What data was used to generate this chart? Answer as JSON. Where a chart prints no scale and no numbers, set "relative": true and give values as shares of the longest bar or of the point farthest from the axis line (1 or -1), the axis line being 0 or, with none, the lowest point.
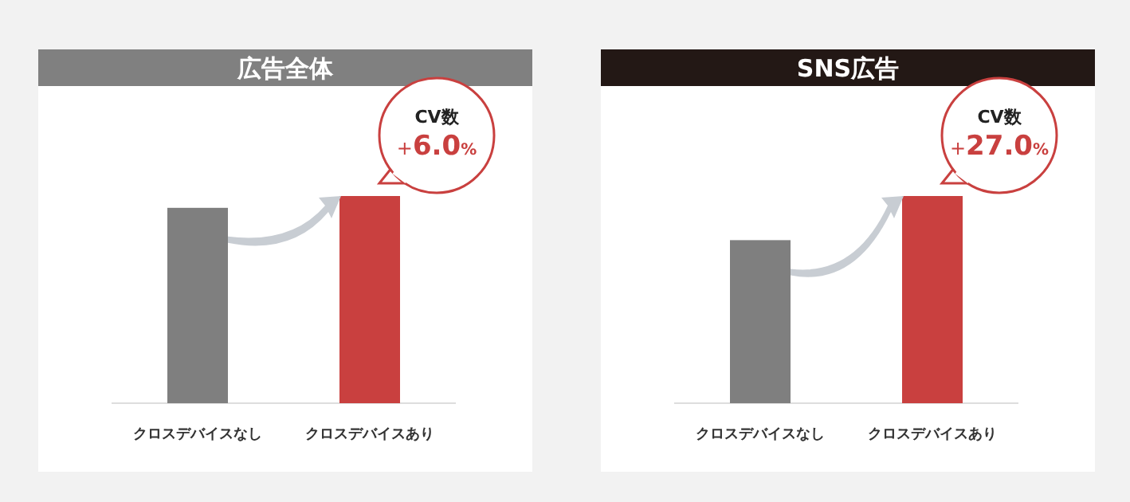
{
  "chart_data": [
    {
      "type": "bar",
      "title": "広告全体",
      "relative": true,
      "categories": [
        "クロスデバイスなし",
        "クロスデバイスあり"
      ],
      "values": [
        0.943,
        1
      ],
      "colors": [
        "#7f7f7f",
        "#c9403f"
      ],
      "annotations": [
        "CV数",
        "+6.0%"
      ]
    },
    {
      "type": "bar",
      "title": "SNS広告",
      "relative": true,
      "categories": [
        "クロスデバイスなし",
        "クロスデバイスあり"
      ],
      "values": [
        0.787,
        1
      ],
      "colors": [
        "#7f7f7f",
        "#c9403f"
      ],
      "annotations": [
        "CV数",
        "+27.0%"
      ]
    }
  ]
}
